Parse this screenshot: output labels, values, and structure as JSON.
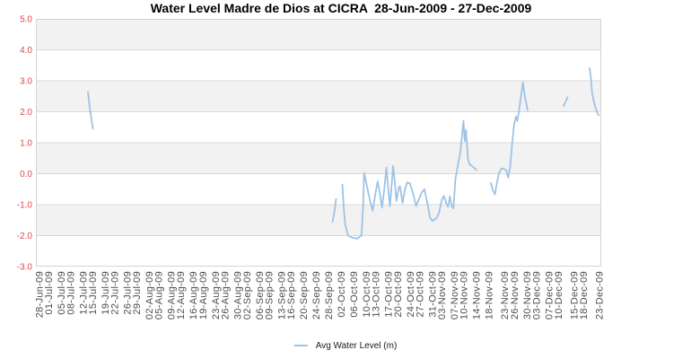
{
  "chart_data": {
    "type": "line",
    "title": "Water Level Madre de Dios at CICRA  28-Jun-2009 - 27-Dec-2009",
    "series_name": "Avg Water Level (m)",
    "legend_position": "bottom-center",
    "grid": "horizontal-bands",
    "ylim": [
      -3.0,
      5.0
    ],
    "yticks": [
      5.0,
      4.0,
      3.0,
      2.0,
      1.0,
      0.0,
      -1.0,
      -2.0,
      -3.0
    ],
    "gray_bands": [
      [
        5,
        4
      ],
      [
        3,
        2
      ],
      [
        1,
        0
      ],
      [
        -1,
        -2
      ]
    ],
    "colors": {
      "line": "#9dc3e6",
      "band": "#f2f2f2",
      "grid": "#d9d9d9",
      "border": "#d4d4d4",
      "ytick": "#e04848",
      "xtick": "#4d4d4d"
    },
    "x_axis": {
      "day_span": 178.6,
      "start_label": "28-Jun-09",
      "end_label": "23-Dec-09"
    },
    "x_ticks": [
      {
        "label": "28-Jun-09",
        "day": 0
      },
      {
        "label": "01-Jul-09",
        "day": 3
      },
      {
        "label": "05-Jul-09",
        "day": 7
      },
      {
        "label": "08-Jul-09",
        "day": 10
      },
      {
        "label": "12-Jul-09",
        "day": 14
      },
      {
        "label": "15-Jul-09",
        "day": 17
      },
      {
        "label": "19-Jul-09",
        "day": 21
      },
      {
        "label": "22-Jul-09",
        "day": 24
      },
      {
        "label": "26-Jul-09",
        "day": 28
      },
      {
        "label": "29-Jul-09",
        "day": 31
      },
      {
        "label": "02-Aug-09",
        "day": 35
      },
      {
        "label": "05-Aug-09",
        "day": 38
      },
      {
        "label": "09-Aug-09",
        "day": 42
      },
      {
        "label": "12-Aug-09",
        "day": 45
      },
      {
        "label": "16-Aug-09",
        "day": 49
      },
      {
        "label": "19-Aug-09",
        "day": 52
      },
      {
        "label": "23-Aug-09",
        "day": 56
      },
      {
        "label": "26-Aug-09",
        "day": 59
      },
      {
        "label": "30-Aug-09",
        "day": 63
      },
      {
        "label": "02-Sep-09",
        "day": 66
      },
      {
        "label": "06-Sep-09",
        "day": 70
      },
      {
        "label": "09-Sep-09",
        "day": 73
      },
      {
        "label": "13-Sep-09",
        "day": 77
      },
      {
        "label": "16-Sep-09",
        "day": 80
      },
      {
        "label": "20-Sep-09",
        "day": 84
      },
      {
        "label": "24-Sep-09",
        "day": 88
      },
      {
        "label": "28-Sep-09",
        "day": 92
      },
      {
        "label": "02-Oct-09",
        "day": 96
      },
      {
        "label": "06-Oct-09",
        "day": 100
      },
      {
        "label": "10-Oct-09",
        "day": 104
      },
      {
        "label": "13-Oct-09",
        "day": 107
      },
      {
        "label": "17-Oct-09",
        "day": 111
      },
      {
        "label": "20-Oct-09",
        "day": 114
      },
      {
        "label": "24-Oct-09",
        "day": 118
      },
      {
        "label": "27-Oct-09",
        "day": 121
      },
      {
        "label": "31-Oct-09",
        "day": 125
      },
      {
        "label": "03-Nov-09",
        "day": 128
      },
      {
        "label": "07-Nov-09",
        "day": 132
      },
      {
        "label": "10-Nov-09",
        "day": 135
      },
      {
        "label": "14-Nov-09",
        "day": 139
      },
      {
        "label": "18-Nov-09",
        "day": 143
      },
      {
        "label": "23-Nov-09",
        "day": 148
      },
      {
        "label": "26-Nov-09",
        "day": 151
      },
      {
        "label": "30-Nov-09",
        "day": 155
      },
      {
        "label": "03-Dec-09",
        "day": 158
      },
      {
        "label": "07-Dec-09",
        "day": 162
      },
      {
        "label": "10-Dec-09",
        "day": 165
      },
      {
        "label": "15-Dec-09",
        "day": 170
      },
      {
        "label": "18-Dec-09",
        "day": 173
      },
      {
        "label": "23-Dec-09",
        "day": 178
      }
    ],
    "segments": [
      [
        [
          15.4,
          2.64
        ],
        [
          16.0,
          2.1
        ],
        [
          16.5,
          1.77
        ],
        [
          17.0,
          1.45
        ]
      ],
      [
        [
          93.2,
          -1.55
        ],
        [
          93.8,
          -1.2
        ],
        [
          94.3,
          -0.82
        ]
      ],
      [
        [
          96.3,
          -0.35
        ],
        [
          96.8,
          -1.2
        ],
        [
          97.2,
          -1.65
        ],
        [
          98.1,
          -2.0
        ],
        [
          99.5,
          -2.07
        ],
        [
          101.0,
          -2.1
        ],
        [
          102.4,
          -2.0
        ],
        [
          102.9,
          -1.0
        ],
        [
          103.2,
          0.02
        ],
        [
          103.9,
          -0.3
        ],
        [
          104.6,
          -0.65
        ],
        [
          105.2,
          -0.92
        ],
        [
          105.9,
          -1.2
        ],
        [
          106.7,
          -0.7
        ],
        [
          107.5,
          -0.25
        ],
        [
          108.2,
          -0.62
        ],
        [
          108.9,
          -1.1
        ],
        [
          109.6,
          -0.5
        ],
        [
          110.3,
          0.2
        ],
        [
          110.9,
          -0.5
        ],
        [
          111.4,
          -1.05
        ],
        [
          112.0,
          -0.3
        ],
        [
          112.4,
          0.25
        ],
        [
          112.9,
          -0.2
        ],
        [
          113.5,
          -0.88
        ],
        [
          114.2,
          -0.46
        ],
        [
          114.6,
          -0.4
        ],
        [
          115.4,
          -0.95
        ],
        [
          116.2,
          -0.5
        ],
        [
          116.9,
          -0.28
        ],
        [
          117.8,
          -0.32
        ],
        [
          118.7,
          -0.6
        ],
        [
          119.7,
          -1.05
        ],
        [
          120.7,
          -0.8
        ],
        [
          121.6,
          -0.6
        ],
        [
          122.4,
          -0.5
        ],
        [
          123.3,
          -0.95
        ],
        [
          124.1,
          -1.4
        ],
        [
          124.9,
          -1.53
        ],
        [
          126.1,
          -1.45
        ],
        [
          127.0,
          -1.28
        ],
        [
          127.9,
          -0.85
        ],
        [
          128.6,
          -0.72
        ],
        [
          129.3,
          -0.95
        ],
        [
          129.9,
          -1.07
        ],
        [
          130.5,
          -0.73
        ],
        [
          131.1,
          -1.07
        ],
        [
          131.6,
          -1.12
        ],
        [
          132.2,
          -0.2
        ],
        [
          132.9,
          0.2
        ],
        [
          133.8,
          0.7
        ],
        [
          134.4,
          1.3
        ],
        [
          134.8,
          1.7
        ],
        [
          135.2,
          1.05
        ],
        [
          135.6,
          1.42
        ],
        [
          136.2,
          0.5
        ],
        [
          136.6,
          0.32
        ],
        [
          137.5,
          0.25
        ],
        [
          138.3,
          0.18
        ],
        [
          138.9,
          0.12
        ]
      ],
      [
        [
          143.5,
          -0.3
        ],
        [
          144.2,
          -0.55
        ],
        [
          144.8,
          -0.67
        ],
        [
          145.5,
          -0.25
        ],
        [
          146.2,
          0.05
        ],
        [
          146.9,
          0.17
        ],
        [
          147.7,
          0.15
        ],
        [
          148.5,
          0.1
        ],
        [
          149.0,
          -0.13
        ],
        [
          149.6,
          0.2
        ],
        [
          150.2,
          0.9
        ],
        [
          150.9,
          1.6
        ],
        [
          151.5,
          1.85
        ],
        [
          151.9,
          1.7
        ],
        [
          152.4,
          2.0
        ],
        [
          153.0,
          2.45
        ],
        [
          153.7,
          2.95
        ],
        [
          154.3,
          2.5
        ],
        [
          154.8,
          2.25
        ],
        [
          155.2,
          2.05
        ]
      ],
      [
        [
          166.6,
          2.18
        ],
        [
          167.9,
          2.47
        ]
      ],
      [
        [
          174.9,
          3.41
        ],
        [
          175.3,
          3.1
        ],
        [
          175.7,
          2.6
        ],
        [
          176.2,
          2.35
        ],
        [
          176.7,
          2.15
        ],
        [
          177.3,
          1.98
        ],
        [
          177.8,
          1.88
        ]
      ]
    ]
  }
}
